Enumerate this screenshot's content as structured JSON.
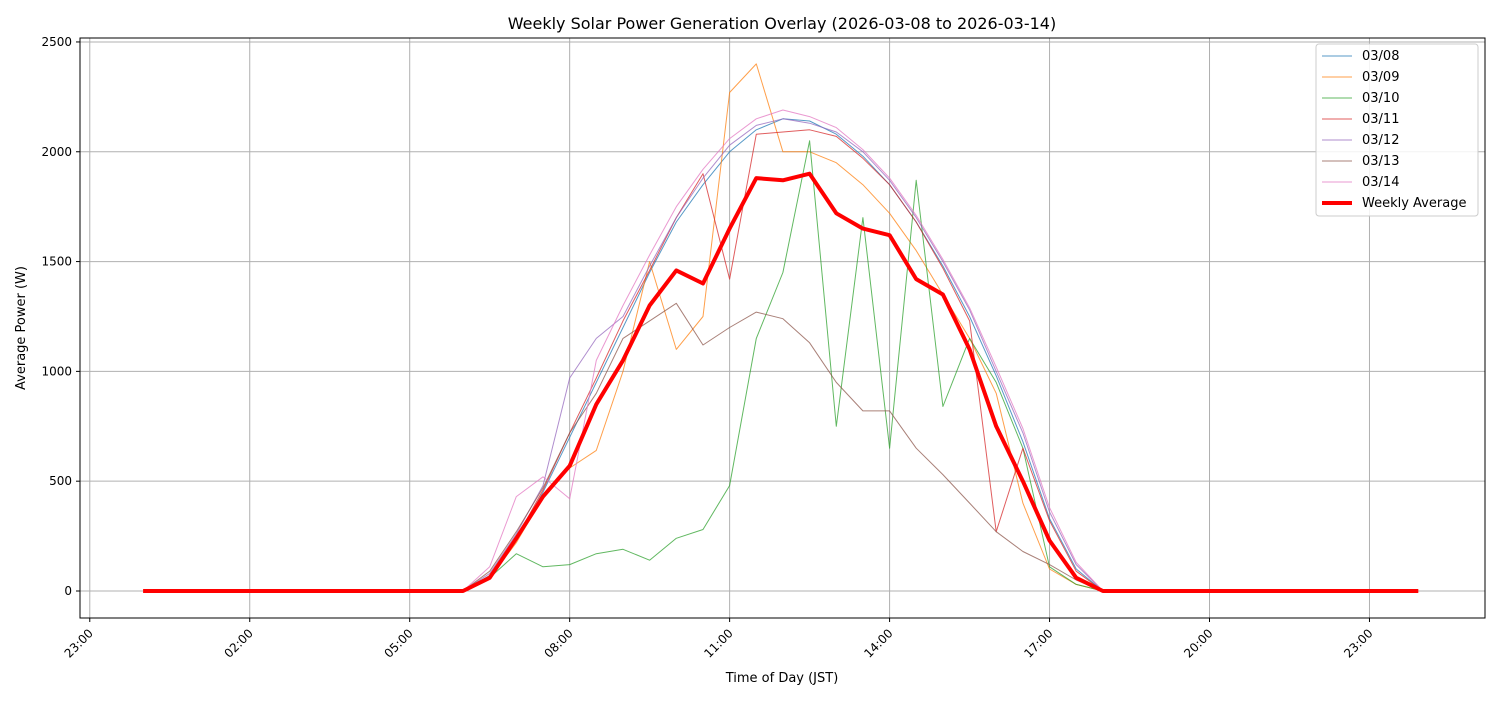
{
  "chart_data": {
    "type": "line",
    "title": "Weekly Solar Power Generation Overlay (2026-03-08 to 2026-03-14)",
    "xlabel": "Time of Day (JST)",
    "ylabel": "Average Power (W)",
    "xlim": [
      "22:49",
      "01:10"
    ],
    "ylim": [
      -123,
      2518
    ],
    "xticks": [
      "23:00",
      "02:00",
      "05:00",
      "08:00",
      "11:00",
      "14:00",
      "17:00",
      "20:00",
      "23:00"
    ],
    "yticks": [
      0,
      500,
      1000,
      1500,
      2000,
      2500
    ],
    "grid": true,
    "legend_position": "top-right",
    "x": [
      "00:00",
      "06:00",
      "06:30",
      "07:00",
      "07:30",
      "08:00",
      "08:30",
      "09:00",
      "09:30",
      "10:00",
      "10:30",
      "11:00",
      "11:30",
      "12:00",
      "12:30",
      "13:00",
      "13:30",
      "14:00",
      "14:30",
      "15:00",
      "15:30",
      "16:00",
      "16:30",
      "17:00",
      "17:30",
      "18:00",
      "23:55"
    ],
    "series": [
      {
        "name": "03/08",
        "color": "#1f77b4",
        "values": [
          0,
          0,
          70,
          230,
          450,
          700,
          950,
          1200,
          1450,
          1680,
          1850,
          2000,
          2100,
          2150,
          2140,
          2080,
          1980,
          1850,
          1680,
          1480,
          1250,
          980,
          680,
          330,
          100,
          0,
          0
        ]
      },
      {
        "name": "03/09",
        "color": "#ff7f0e",
        "values": [
          0,
          0,
          60,
          220,
          430,
          560,
          640,
          1000,
          1500,
          1100,
          1250,
          2270,
          2400,
          2000,
          2000,
          1950,
          1850,
          1720,
          1550,
          1350,
          1150,
          900,
          400,
          100,
          30,
          0,
          0
        ]
      },
      {
        "name": "03/10",
        "color": "#2ca02c",
        "values": [
          0,
          0,
          60,
          170,
          110,
          120,
          170,
          190,
          140,
          240,
          280,
          480,
          1150,
          1450,
          2050,
          750,
          1700,
          650,
          1870,
          840,
          1150,
          950,
          650,
          110,
          30,
          0,
          0
        ]
      },
      {
        "name": "03/11",
        "color": "#d62728",
        "values": [
          0,
          0,
          70,
          240,
          460,
          720,
          970,
          1230,
          1460,
          1700,
          1900,
          1420,
          2080,
          2090,
          2100,
          2070,
          1970,
          1850,
          1680,
          1470,
          1230,
          270,
          650,
          320,
          90,
          0,
          0
        ]
      },
      {
        "name": "03/12",
        "color": "#9467bd",
        "values": [
          0,
          0,
          80,
          260,
          480,
          970,
          1150,
          1250,
          1480,
          1700,
          1880,
          2030,
          2120,
          2150,
          2130,
          2090,
          2000,
          1870,
          1700,
          1500,
          1280,
          1000,
          720,
          360,
          120,
          0,
          0
        ]
      },
      {
        "name": "03/13",
        "color": "#8c564b",
        "values": [
          0,
          0,
          90,
          270,
          470,
          720,
          900,
          1150,
          1230,
          1310,
          1120,
          1200,
          1270,
          1240,
          1130,
          950,
          820,
          820,
          650,
          530,
          400,
          270,
          180,
          120,
          50,
          0,
          0
        ]
      },
      {
        "name": "03/14",
        "color": "#e377c2",
        "values": [
          0,
          0,
          110,
          430,
          520,
          420,
          1050,
          1300,
          1530,
          1750,
          1920,
          2060,
          2150,
          2190,
          2160,
          2110,
          2010,
          1880,
          1710,
          1510,
          1290,
          1020,
          740,
          380,
          130,
          0,
          0
        ]
      },
      {
        "name": "Weekly Average",
        "color": "#ff0000",
        "values": [
          0,
          0,
          60,
          240,
          430,
          570,
          850,
          1050,
          1300,
          1460,
          1400,
          1650,
          1880,
          1870,
          1900,
          1720,
          1650,
          1620,
          1420,
          1350,
          1100,
          750,
          500,
          230,
          60,
          0,
          0
        ]
      }
    ]
  }
}
